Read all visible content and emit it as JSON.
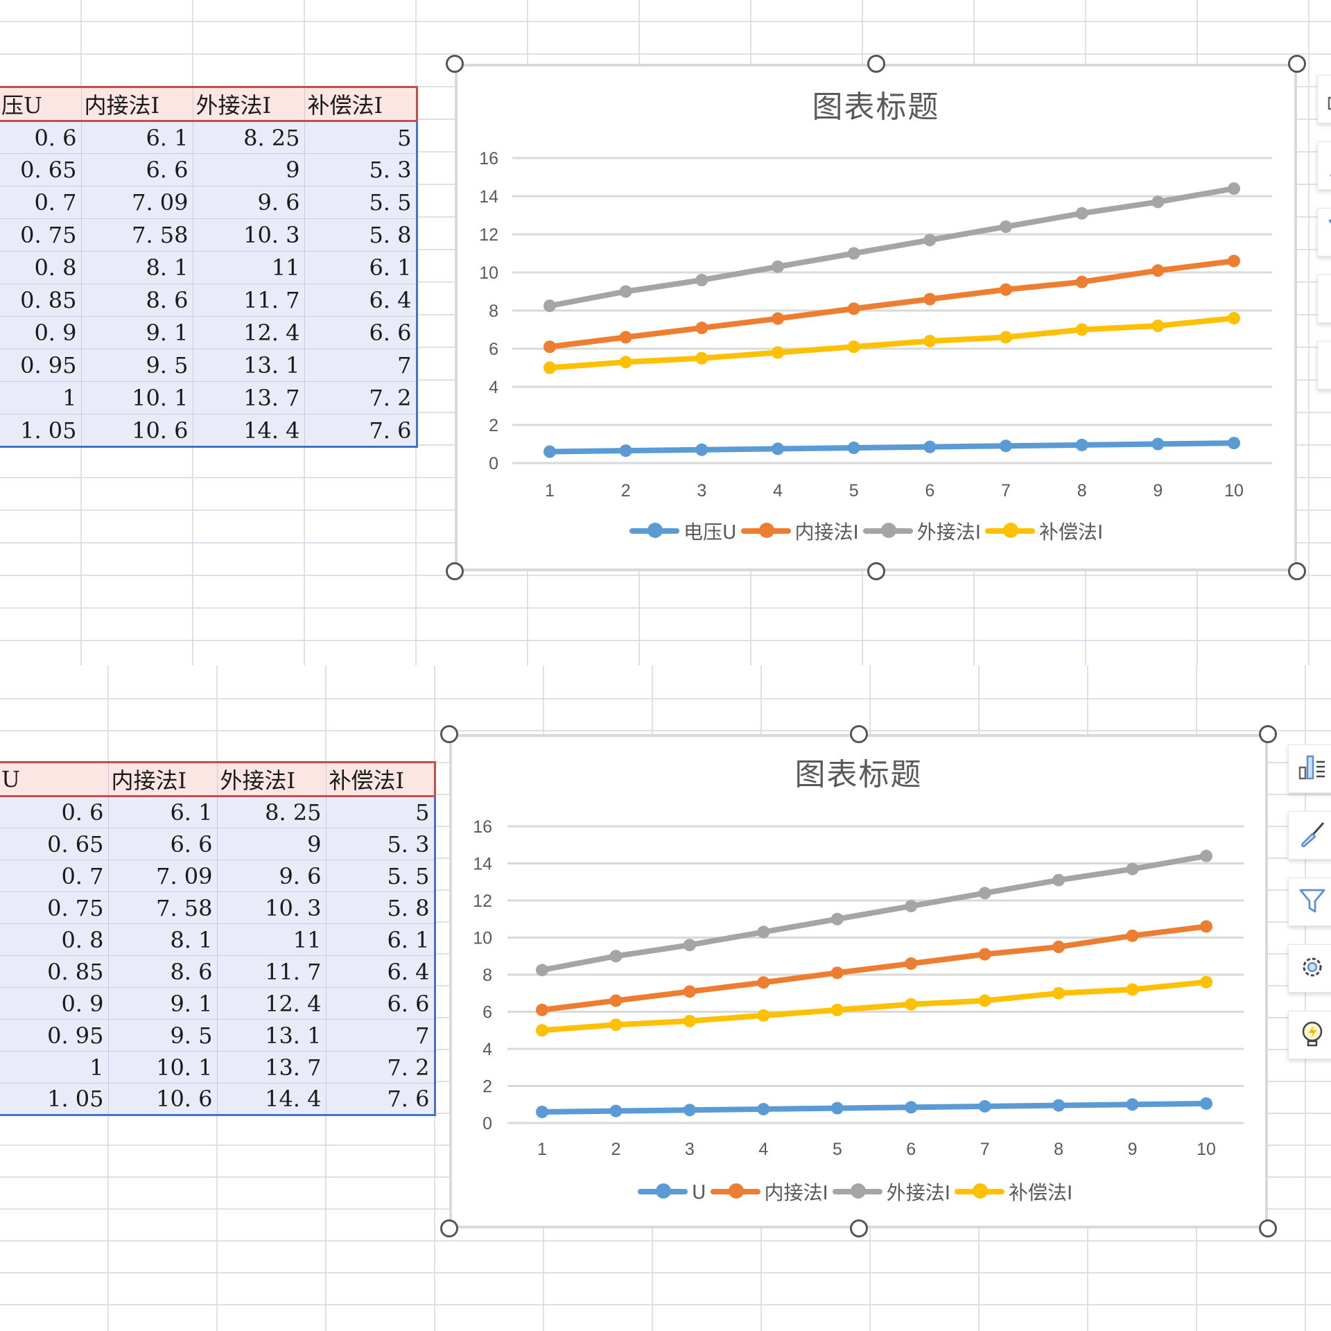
{
  "colors": {
    "u": "#5b9bd5",
    "inner": "#ed7d31",
    "outer": "#a5a5a5",
    "comp": "#ffc000",
    "grid": "#d9d9d9",
    "sheet_grid": "#d4d7e6",
    "header_fill": "#fbe6e4",
    "header_border": "#c0504d",
    "data_fill": "#e9ecf8",
    "data_border": "#4472c4"
  },
  "top": {
    "table": {
      "headers": [
        "压U",
        "内接法I",
        "外接法I",
        "补偿法I"
      ],
      "rows": [
        [
          "0.6",
          "6.1",
          "8.25",
          "5"
        ],
        [
          "0.65",
          "6.6",
          "9",
          "5.3"
        ],
        [
          "0.7",
          "7.09",
          "9.6",
          "5.5"
        ],
        [
          "0.75",
          "7.58",
          "10.3",
          "5.8"
        ],
        [
          "0.8",
          "8.1",
          "11",
          "6.1"
        ],
        [
          "0.85",
          "8.6",
          "11.7",
          "6.4"
        ],
        [
          "0.9",
          "9.1",
          "12.4",
          "6.6"
        ],
        [
          "0.95",
          "9.5",
          "13.1",
          "7"
        ],
        [
          "1",
          "10.1",
          "13.7",
          "7.2"
        ],
        [
          "1.05",
          "10.6",
          "14.4",
          "7.6"
        ]
      ]
    },
    "chart": {
      "title": "图表标题",
      "legend": [
        "电压U",
        "内接法I",
        "外接法I",
        "补偿法I"
      ]
    },
    "toolbar": [
      "chart-elements-icon",
      "chart-style-icon",
      "chart-filter-icon",
      "settings-icon",
      "idea-icon"
    ]
  },
  "bottom": {
    "table": {
      "headers": [
        "U",
        "内接法I",
        "外接法I",
        "补偿法I"
      ],
      "rows": [
        [
          "0.6",
          "6.1",
          "8.25",
          "5"
        ],
        [
          "0.65",
          "6.6",
          "9",
          "5.3"
        ],
        [
          "0.7",
          "7.09",
          "9.6",
          "5.5"
        ],
        [
          "0.75",
          "7.58",
          "10.3",
          "5.8"
        ],
        [
          "0.8",
          "8.1",
          "11",
          "6.1"
        ],
        [
          "0.85",
          "8.6",
          "11.7",
          "6.4"
        ],
        [
          "0.9",
          "9.1",
          "12.4",
          "6.6"
        ],
        [
          "0.95",
          "9.5",
          "13.1",
          "7"
        ],
        [
          "1",
          "10.1",
          "13.7",
          "7.2"
        ],
        [
          "1.05",
          "10.6",
          "14.4",
          "7.6"
        ]
      ]
    },
    "chart": {
      "title": "图表标题",
      "legend": [
        "U",
        "内接法I",
        "外接法I",
        "补偿法I"
      ]
    },
    "toolbar": [
      "chart-elements-icon",
      "chart-style-icon",
      "chart-filter-icon",
      "settings-icon",
      "idea-icon"
    ]
  },
  "chart_data": [
    {
      "type": "line",
      "title": "图表标题",
      "xlabel": "",
      "ylabel": "",
      "categories": [
        "1",
        "2",
        "3",
        "4",
        "5",
        "6",
        "7",
        "8",
        "9",
        "10"
      ],
      "yticks": [
        "0",
        "2",
        "4",
        "6",
        "8",
        "10",
        "12",
        "14",
        "16"
      ],
      "ylim": [
        0,
        16
      ],
      "grid": true,
      "legend_position": "bottom",
      "series": [
        {
          "name": "电压U",
          "color": "#5b9bd5",
          "values": [
            0.6,
            0.65,
            0.7,
            0.75,
            0.8,
            0.85,
            0.9,
            0.95,
            1,
            1.05
          ]
        },
        {
          "name": "内接法I",
          "color": "#ed7d31",
          "values": [
            6.1,
            6.6,
            7.09,
            7.58,
            8.1,
            8.6,
            9.1,
            9.5,
            10.1,
            10.6
          ]
        },
        {
          "name": "外接法I",
          "color": "#a5a5a5",
          "values": [
            8.25,
            9,
            9.6,
            10.3,
            11,
            11.7,
            12.4,
            13.1,
            13.7,
            14.4
          ]
        },
        {
          "name": "补偿法I",
          "color": "#ffc000",
          "values": [
            5,
            5.3,
            5.5,
            5.8,
            6.1,
            6.4,
            6.6,
            7,
            7.2,
            7.6
          ]
        }
      ]
    },
    {
      "type": "line",
      "title": "图表标题",
      "xlabel": "",
      "ylabel": "",
      "categories": [
        "1",
        "2",
        "3",
        "4",
        "5",
        "6",
        "7",
        "8",
        "9",
        "10"
      ],
      "yticks": [
        "0",
        "2",
        "4",
        "6",
        "8",
        "10",
        "12",
        "14",
        "16"
      ],
      "ylim": [
        0,
        16
      ],
      "grid": true,
      "legend_position": "bottom",
      "series": [
        {
          "name": "U",
          "color": "#5b9bd5",
          "values": [
            0.6,
            0.65,
            0.7,
            0.75,
            0.8,
            0.85,
            0.9,
            0.95,
            1,
            1.05
          ]
        },
        {
          "name": "内接法I",
          "color": "#ed7d31",
          "values": [
            6.1,
            6.6,
            7.09,
            7.58,
            8.1,
            8.6,
            9.1,
            9.5,
            10.1,
            10.6
          ]
        },
        {
          "name": "外接法I",
          "color": "#a5a5a5",
          "values": [
            8.25,
            9,
            9.6,
            10.3,
            11,
            11.7,
            12.4,
            13.1,
            13.7,
            14.4
          ]
        },
        {
          "name": "补偿法I",
          "color": "#ffc000",
          "values": [
            5,
            5.3,
            5.5,
            5.8,
            6.1,
            6.4,
            6.6,
            7,
            7.2,
            7.6
          ]
        }
      ]
    }
  ]
}
